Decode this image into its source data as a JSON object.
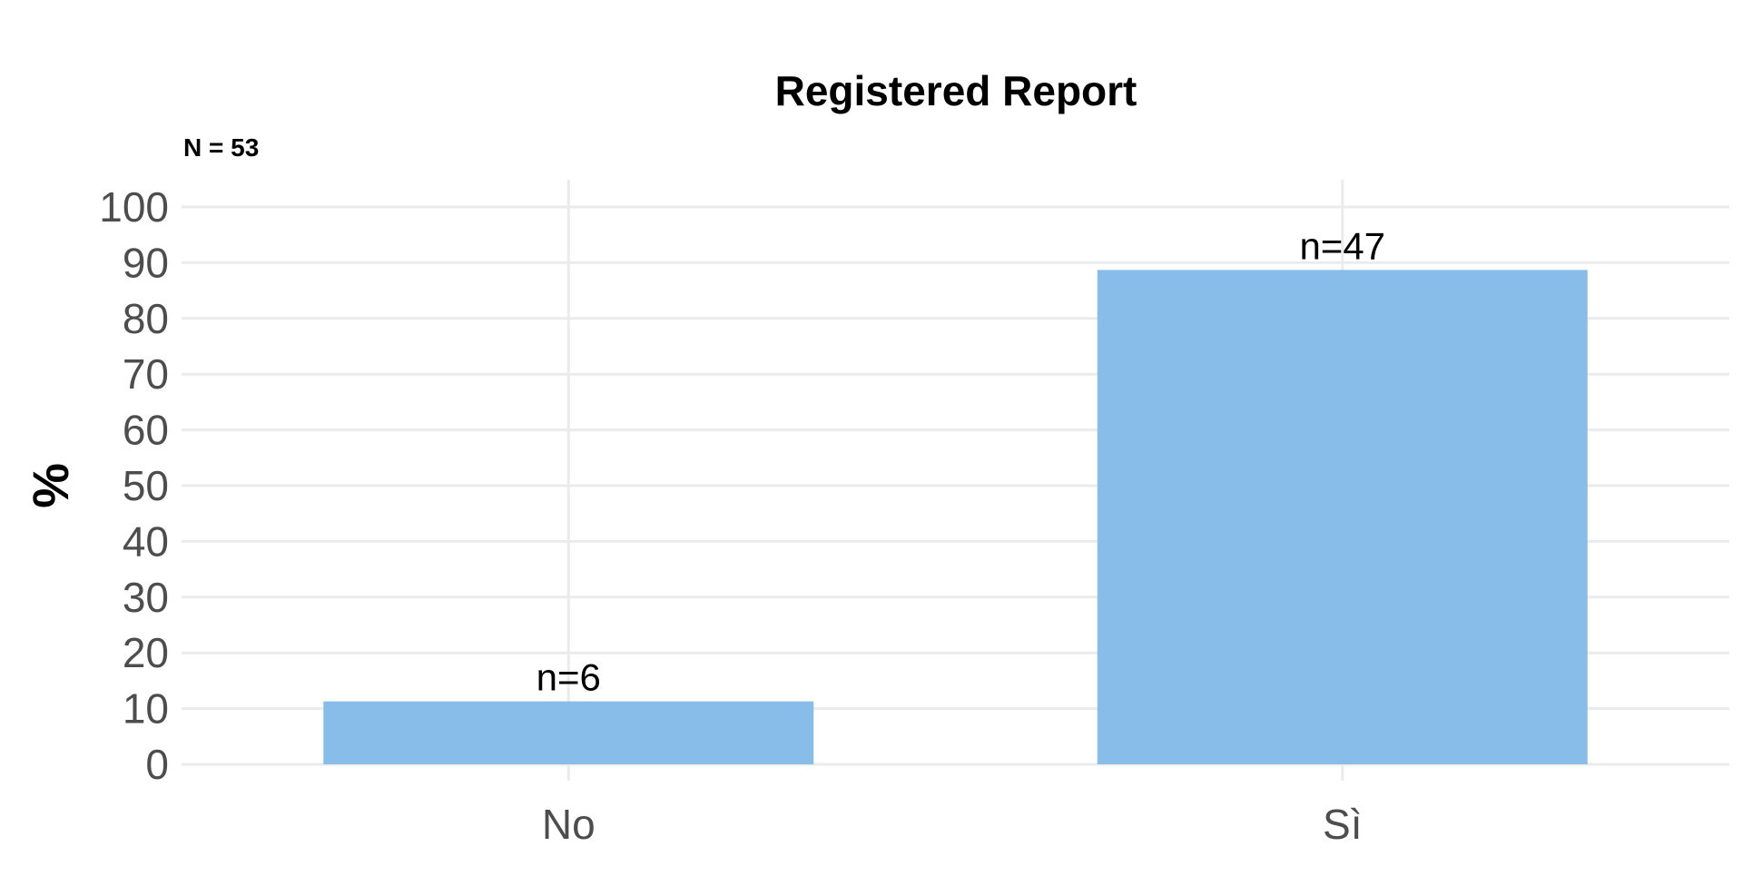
{
  "chart_data": {
    "type": "bar",
    "title": "Registered Report",
    "subtitle": "N = 53",
    "xlabel": "",
    "ylabel": "%",
    "categories": [
      "No",
      "Sì"
    ],
    "values": [
      11.3,
      88.7
    ],
    "counts": [
      6,
      47
    ],
    "data_labels": [
      "n=6",
      "n=47"
    ],
    "ylim": [
      0,
      100
    ],
    "yticks": [
      0,
      10,
      20,
      30,
      40,
      50,
      60,
      70,
      80,
      90,
      100
    ],
    "grid": true,
    "legend": "none",
    "colors": {
      "bar": "#89bde9",
      "grid": "#ebebeb",
      "tick_text": "#4d4d4d",
      "text": "#000000"
    }
  }
}
